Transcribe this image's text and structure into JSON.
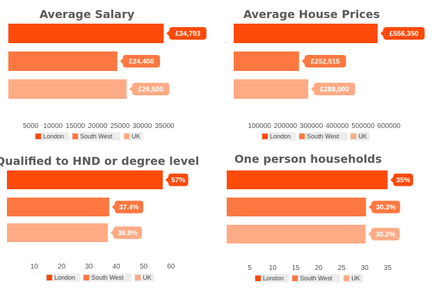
{
  "chart_data": [
    {
      "type": "bar",
      "orientation": "horizontal",
      "title": "Average Salary",
      "categories": [
        "London",
        "South West",
        "UK"
      ],
      "values": [
        34793,
        24400,
        26500
      ],
      "data_labels": [
        "£34,793",
        "£24,400",
        "£26,500"
      ],
      "ticks": [
        5000,
        10000,
        15000,
        20000,
        25000,
        30000,
        35000
      ],
      "xlim": [
        0,
        38000
      ],
      "legend": "bottom",
      "grid": false
    },
    {
      "type": "bar",
      "orientation": "horizontal",
      "title": "Average House Prices",
      "categories": [
        "London",
        "South West",
        "UK"
      ],
      "values": [
        556350,
        252515,
        288000
      ],
      "data_labels": [
        "£556,350",
        "£252,515",
        "£288,000"
      ],
      "ticks": [
        100000,
        200000,
        300000,
        400000,
        500000,
        600000
      ],
      "xlim": [
        0,
        645000
      ],
      "legend": "bottom",
      "grid": false
    },
    {
      "type": "bar",
      "orientation": "horizontal",
      "title": "Qualified to HND or degree level",
      "categories": [
        "London",
        "South West",
        "UK"
      ],
      "values": [
        57,
        37.4,
        36.9
      ],
      "data_labels": [
        "57%",
        "37.4%",
        "36.9%"
      ],
      "ticks": [
        10,
        20,
        30,
        40,
        50,
        60
      ],
      "xlim": [
        0,
        65
      ],
      "legend": "bottom",
      "grid": false
    },
    {
      "type": "bar",
      "orientation": "horizontal",
      "title": "One person households",
      "categories": [
        "London",
        "South West",
        "UK"
      ],
      "values": [
        35,
        30.3,
        30.2
      ],
      "data_labels": [
        "35%",
        "30.3%",
        "30.2%"
      ],
      "ticks": [
        5,
        10,
        15,
        20,
        25,
        30,
        35
      ],
      "xlim": [
        0,
        39
      ],
      "legend": "bottom",
      "grid": false
    }
  ],
  "colors": {
    "London": "#fc4a0a",
    "South West": "#fc7840",
    "UK": "#fdab85"
  }
}
